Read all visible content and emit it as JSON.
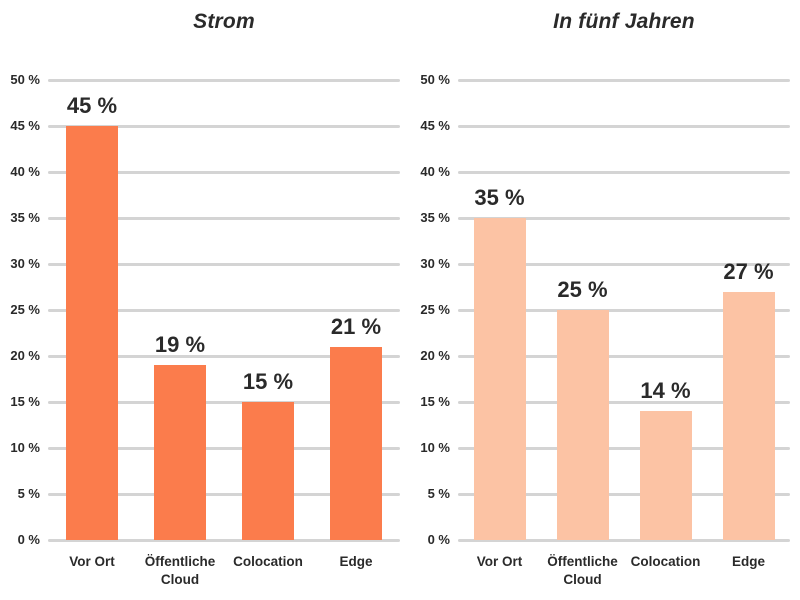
{
  "colors": {
    "text": "#2A2A2A",
    "gridline": "#D4D4D4",
    "background": "#FFFFFF",
    "bar_current": "#FB7C4C",
    "bar_future": "#FCC3A4"
  },
  "chart_data": [
    {
      "type": "bar",
      "title": "Strom",
      "categories": [
        "Vor Ort",
        "Öffentliche Cloud",
        "Colocation",
        "Edge"
      ],
      "values": [
        45,
        19,
        15,
        21
      ],
      "value_labels": [
        "45 %",
        "19 %",
        "15 %",
        "21 %"
      ],
      "bar_color": "#FB7C4C",
      "xlabel": "",
      "ylabel": "",
      "ylim": [
        0,
        50
      ],
      "ytick_step": 5,
      "ytick_labels": [
        "0 %",
        "5 %",
        "10 %",
        "15 %",
        "20 %",
        "25 %",
        "30 %",
        "35 %",
        "40 %",
        "45 %",
        "50 %"
      ],
      "grid": true,
      "legend": "none"
    },
    {
      "type": "bar",
      "title": "In fünf Jahren",
      "categories": [
        "Vor Ort",
        "Öffentliche Cloud",
        "Colocation",
        "Edge"
      ],
      "values": [
        35,
        25,
        14,
        27
      ],
      "value_labels": [
        "35 %",
        "25 %",
        "14 %",
        "27 %"
      ],
      "bar_color": "#FCC3A4",
      "xlabel": "",
      "ylabel": "",
      "ylim": [
        0,
        50
      ],
      "ytick_step": 5,
      "ytick_labels": [
        "0 %",
        "5 %",
        "10 %",
        "15 %",
        "20 %",
        "25 %",
        "30 %",
        "35 %",
        "40 %",
        "45 %",
        "50 %"
      ],
      "grid": true,
      "legend": "none"
    }
  ]
}
